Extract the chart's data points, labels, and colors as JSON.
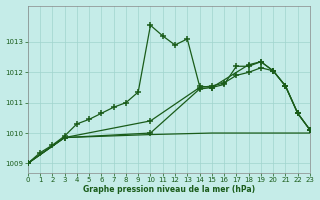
{
  "background_color": "#c5ece8",
  "grid_color": "#a0d4ce",
  "line_color": "#1a5c1a",
  "title": "Graphe pression niveau de la mer (hPa)",
  "xlim": [
    0,
    23
  ],
  "ylim": [
    1008.7,
    1014.2
  ],
  "yticks": [
    1009,
    1010,
    1011,
    1012,
    1013
  ],
  "xticks": [
    0,
    1,
    2,
    3,
    4,
    5,
    6,
    7,
    8,
    9,
    10,
    11,
    12,
    13,
    14,
    15,
    16,
    17,
    18,
    19,
    20,
    21,
    22,
    23
  ],
  "line1_x": [
    0,
    1,
    2,
    3,
    4,
    5,
    6,
    7,
    8,
    9,
    10,
    11,
    12,
    13,
    14,
    15,
    16,
    17,
    18,
    19,
    20,
    21,
    22,
    23
  ],
  "line1_y": [
    1009.0,
    1009.35,
    1009.6,
    1009.9,
    1010.3,
    1010.45,
    1010.65,
    1010.85,
    1011.0,
    1011.35,
    1013.55,
    1013.2,
    1012.9,
    1013.1,
    1011.55,
    1011.5,
    1011.6,
    1012.2,
    1012.2,
    1012.35,
    1012.05,
    1011.55,
    1010.65,
    1010.1
  ],
  "line2_x": [
    0,
    3,
    10,
    15,
    20,
    22,
    23
  ],
  "line2_y": [
    1009.0,
    1009.85,
    1009.95,
    1010.0,
    1010.0,
    1010.0,
    1010.0
  ],
  "line3_x": [
    0,
    3,
    10,
    14,
    15,
    16,
    17,
    18,
    19,
    20,
    21,
    22,
    23
  ],
  "line3_y": [
    1009.0,
    1009.85,
    1010.4,
    1011.5,
    1011.55,
    1011.65,
    1011.9,
    1012.0,
    1012.15,
    1012.05,
    1011.55,
    1010.65,
    1010.1
  ],
  "line4_x": [
    0,
    3,
    10,
    14,
    15,
    18,
    19,
    20,
    21,
    22,
    23
  ],
  "line4_y": [
    1009.0,
    1009.85,
    1010.0,
    1011.45,
    1011.5,
    1012.25,
    1012.35,
    1012.05,
    1011.55,
    1010.65,
    1010.1
  ]
}
